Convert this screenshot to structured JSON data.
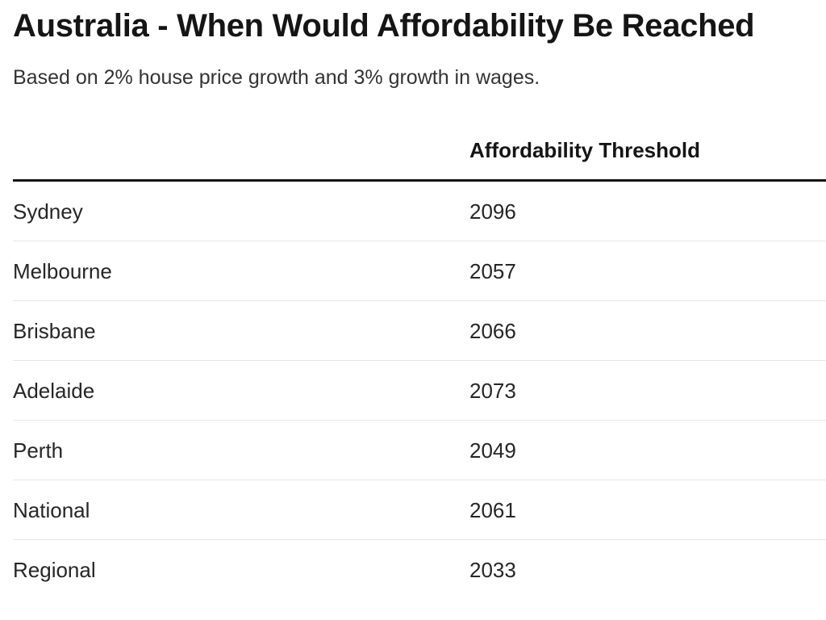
{
  "chart_data": {
    "type": "table",
    "title": "Australia - When Would Affordability Be Reached",
    "subtitle": "Based on 2% house price growth and 3% growth in wages.",
    "columns": [
      "",
      "Affordability Threshold"
    ],
    "rows": [
      {
        "city": "Sydney",
        "year": "2096"
      },
      {
        "city": "Melbourne",
        "year": "2057"
      },
      {
        "city": "Brisbane",
        "year": "2066"
      },
      {
        "city": "Adelaide",
        "year": "2073"
      },
      {
        "city": "Perth",
        "year": "2049"
      },
      {
        "city": "National",
        "year": "2061"
      },
      {
        "city": "Regional",
        "year": "2033"
      }
    ]
  }
}
